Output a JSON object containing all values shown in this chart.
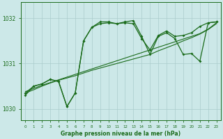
{
  "title": "Graphe pression niveau de la mer (hPa)",
  "bg_color": "#cce8e8",
  "grid_color": "#aacccc",
  "line_color": "#1a6b1a",
  "xlim": [
    -0.5,
    23.5
  ],
  "ylim": [
    1029.75,
    1032.35
  ],
  "yticks": [
    1030,
    1031,
    1032
  ],
  "xtick_labels": [
    "0",
    "1",
    "2",
    "3",
    "4",
    "5",
    "6",
    "7",
    "8",
    "9",
    "10",
    "11",
    "12",
    "13",
    "14",
    "15",
    "16",
    "17",
    "18",
    "19",
    "20",
    "21",
    "22",
    "23"
  ],
  "series_volatile1": [
    1030.35,
    1030.5,
    1030.55,
    1030.65,
    1030.6,
    1030.05,
    1030.35,
    1031.5,
    1031.8,
    1031.92,
    1031.92,
    1031.88,
    1031.92,
    1031.95,
    1031.6,
    1031.2,
    1031.6,
    1031.68,
    1031.55,
    1031.2,
    1031.22,
    1031.05,
    1031.9,
    1031.92
  ],
  "series_volatile2": [
    1030.3,
    1030.5,
    1030.55,
    1030.65,
    1030.6,
    1030.05,
    1030.35,
    1031.5,
    1031.8,
    1031.88,
    1031.9,
    1031.88,
    1031.9,
    1031.88,
    1031.55,
    1031.3,
    1031.62,
    1031.72,
    1031.6,
    1031.62,
    1031.68,
    1031.82,
    1031.9,
    1031.92
  ],
  "series_smooth1": [
    1030.35,
    1030.42,
    1030.5,
    1030.57,
    1030.63,
    1030.68,
    1030.73,
    1030.79,
    1030.85,
    1030.9,
    1030.95,
    1031.0,
    1031.05,
    1031.1,
    1031.15,
    1031.2,
    1031.28,
    1031.35,
    1031.42,
    1031.5,
    1031.57,
    1031.65,
    1031.75,
    1031.88
  ],
  "series_smooth2": [
    1030.38,
    1030.45,
    1030.52,
    1030.58,
    1030.64,
    1030.7,
    1030.76,
    1030.82,
    1030.88,
    1030.94,
    1031.0,
    1031.06,
    1031.12,
    1031.18,
    1031.24,
    1031.3,
    1031.36,
    1031.42,
    1031.48,
    1031.54,
    1031.6,
    1031.66,
    1031.76,
    1031.9
  ]
}
